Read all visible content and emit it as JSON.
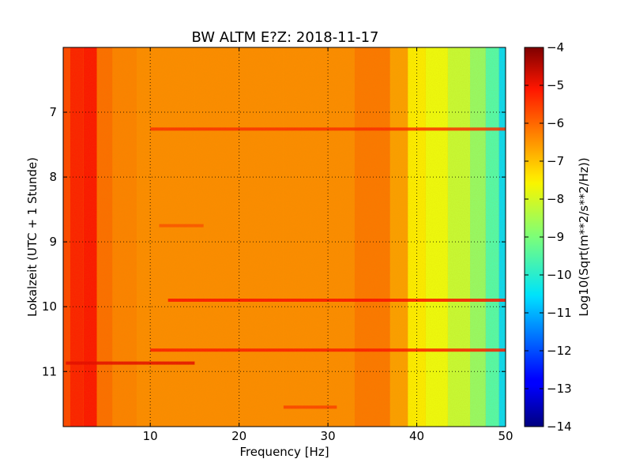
{
  "chart_data": {
    "type": "heatmap",
    "title": "BW ALTM E?Z: 2018-11-17",
    "xlabel": "Frequency [Hz]",
    "ylabel": "Lokalzeit (UTC + 1 Stunde)",
    "xlim": [
      0.2,
      50
    ],
    "ylim": [
      11.85,
      6.0
    ],
    "x_ticks": [
      10,
      20,
      30,
      40,
      50
    ],
    "y_ticks": [
      7,
      8,
      9,
      10,
      11
    ],
    "grid": true,
    "colormap": "jet",
    "colorbar": {
      "label": "Log10(Sqrt(m**2/s**2/Hz))",
      "vmin": -14,
      "vmax": -4,
      "ticks": [
        -4,
        -5,
        -6,
        -7,
        -8,
        -9,
        -10,
        -11,
        -12,
        -13,
        -14
      ]
    },
    "spectrum_profile": [
      {
        "freq": 0.5,
        "value": -5.9
      },
      {
        "freq": 1.5,
        "value": -5.5
      },
      {
        "freq": 3.5,
        "value": -5.4
      },
      {
        "freq": 4.5,
        "value": -6.3
      },
      {
        "freq": 7,
        "value": -6.5
      },
      {
        "freq": 10,
        "value": -6.6
      },
      {
        "freq": 20,
        "value": -6.6
      },
      {
        "freq": 30,
        "value": -6.6
      },
      {
        "freq": 36,
        "value": -6.4
      },
      {
        "freq": 38,
        "value": -6.8
      },
      {
        "freq": 40,
        "value": -7.6
      },
      {
        "freq": 42,
        "value": -7.9
      },
      {
        "freq": 45,
        "value": -8.3
      },
      {
        "freq": 47,
        "value": -8.8
      },
      {
        "freq": 48.5,
        "value": -9.5
      },
      {
        "freq": 50,
        "value": -10.6
      }
    ],
    "features": [
      {
        "time": 7.26,
        "freq_start": 10,
        "freq_end": 50,
        "value": -5.6
      },
      {
        "time": 9.9,
        "freq_start": 12,
        "freq_end": 50,
        "value": -5.3
      },
      {
        "time": 10.67,
        "freq_start": 10,
        "freq_end": 50,
        "value": -5.4
      },
      {
        "time": 10.87,
        "freq_start": 0.5,
        "freq_end": 15,
        "value": -5.0
      },
      {
        "time": 11.55,
        "freq_start": 25,
        "freq_end": 31,
        "value": -5.8
      },
      {
        "time": 8.75,
        "freq_start": 11,
        "freq_end": 16,
        "value": -6.0
      }
    ]
  }
}
